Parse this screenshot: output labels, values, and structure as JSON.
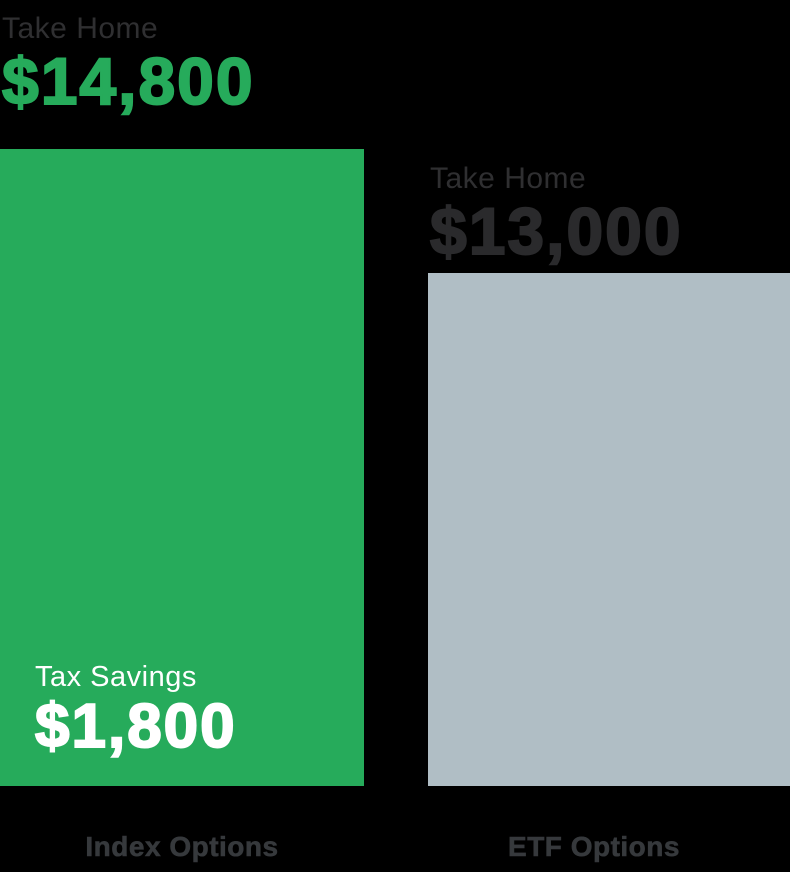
{
  "chart_data": {
    "type": "bar",
    "categories": [
      "Index Options",
      "ETF Options"
    ],
    "series": [
      {
        "name": "Take Home",
        "values": [
          14800,
          13000
        ]
      }
    ],
    "annotations": [
      {
        "bar": "Index Options",
        "label": "Take Home",
        "value": 14800,
        "text": "$14,800",
        "position": "above-bar"
      },
      {
        "bar": "Index Options",
        "label": "Tax Savings",
        "value": 1800,
        "text": "$1,800",
        "position": "inside-bar-bottom"
      },
      {
        "bar": "ETF Options",
        "label": "Take Home",
        "value": 13000,
        "text": "$13,000",
        "position": "above-bar"
      }
    ],
    "title": "",
    "xlabel": "",
    "ylabel": "",
    "axes_visible": false,
    "grid": false,
    "legend": false
  },
  "left": {
    "take_home_label": "Take Home",
    "take_home_value": "$14,800",
    "tax_savings_label": "Tax Savings",
    "tax_savings_value": "$1,800",
    "category": "Index Options"
  },
  "right": {
    "take_home_label": "Take Home",
    "take_home_value": "$13,000",
    "category": "ETF Options"
  },
  "colors": {
    "green": "#26AB5B",
    "gray": "#B0BEC5",
    "dark_text": "#2F2F31",
    "dark_number": "#2A2A2C",
    "category_text": "#36393C",
    "white": "#FFFFFF",
    "background": "#000000"
  }
}
